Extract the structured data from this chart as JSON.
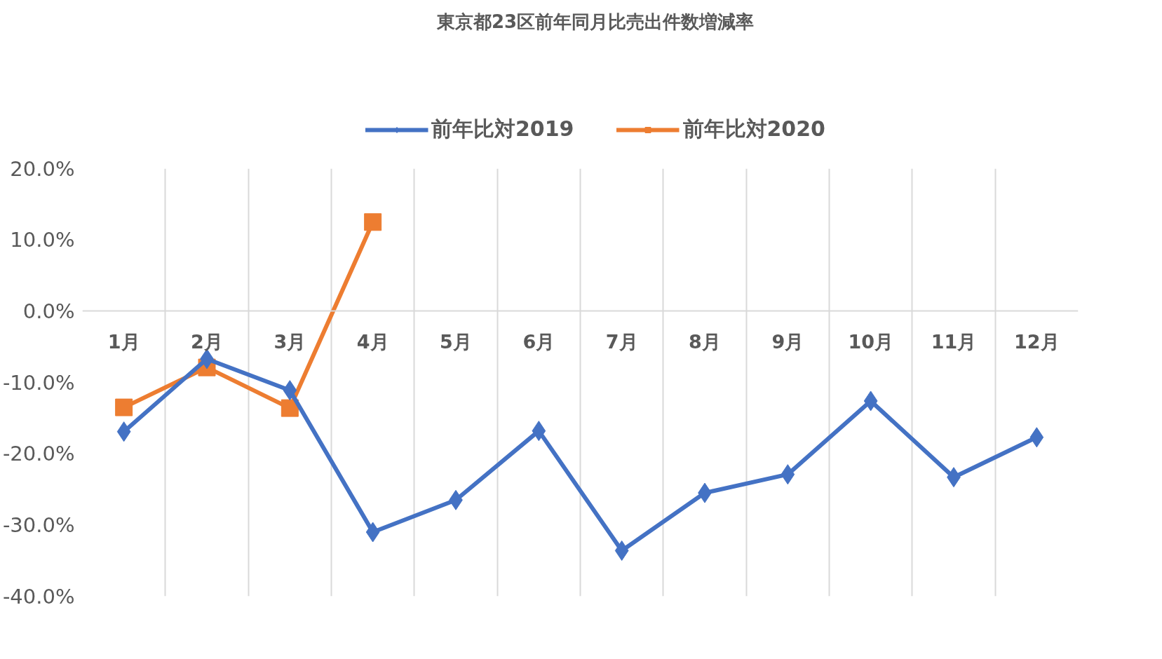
{
  "chart_data": {
    "type": "line",
    "title": "東京都23区前年同月比売出件数増減率",
    "categories": [
      "1月",
      "2月",
      "3月",
      "4月",
      "5月",
      "6月",
      "7月",
      "8月",
      "9月",
      "10月",
      "11月",
      "12月"
    ],
    "series": [
      {
        "name": "前年比対2019",
        "color": "#4472c4",
        "marker": "diamond",
        "values": [
          -16.9,
          -6.7,
          -11.1,
          -31.0,
          -26.5,
          -16.8,
          -33.6,
          -25.5,
          -22.9,
          -12.6,
          -23.3,
          -17.7
        ]
      },
      {
        "name": "前年比対2020",
        "color": "#ed7d31",
        "marker": "square",
        "values": [
          -13.5,
          -7.9,
          -13.6,
          12.5,
          null,
          null,
          null,
          null,
          null,
          null,
          null,
          null
        ]
      }
    ],
    "ylim": [
      -40,
      20
    ],
    "yticks": [
      {
        "value": 20,
        "label": "20.0%"
      },
      {
        "value": 10,
        "label": "10.0%"
      },
      {
        "value": 0,
        "label": "0.0%"
      },
      {
        "value": -10,
        "label": "-10.0%"
      },
      {
        "value": -20,
        "label": "-20.0%"
      },
      {
        "value": -30,
        "label": "-30.0%"
      },
      {
        "value": -40,
        "label": "-40.0%"
      }
    ],
    "grid": "x",
    "legend": "top"
  }
}
